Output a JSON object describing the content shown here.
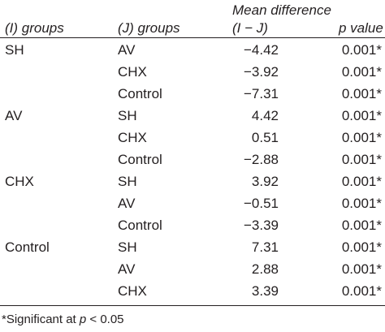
{
  "table": {
    "headers": {
      "i_groups": "(I) groups",
      "j_groups": "(J) groups",
      "mean_diff_line1": "Mean difference",
      "mean_diff_line2": "(I − J)",
      "p_value": "p value"
    },
    "rows": [
      {
        "i": "SH",
        "j": "AV",
        "md": "−4.42",
        "p": "0.001*"
      },
      {
        "i": "",
        "j": "CHX",
        "md": "−3.92",
        "p": "0.001*"
      },
      {
        "i": "",
        "j": "Control",
        "md": "−7.31",
        "p": "0.001*"
      },
      {
        "i": "AV",
        "j": "SH",
        "md": "4.42",
        "p": "0.001*"
      },
      {
        "i": "",
        "j": "CHX",
        "md": "0.51",
        "p": "0.001*"
      },
      {
        "i": "",
        "j": "Control",
        "md": "−2.88",
        "p": "0.001*"
      },
      {
        "i": "CHX",
        "j": "SH",
        "md": "3.92",
        "p": "0.001*"
      },
      {
        "i": "",
        "j": "AV",
        "md": "−0.51",
        "p": "0.001*"
      },
      {
        "i": "",
        "j": "Control",
        "md": "−3.39",
        "p": "0.001*"
      },
      {
        "i": "Control",
        "j": "SH",
        "md": "7.31",
        "p": "0.001*"
      },
      {
        "i": "",
        "j": "AV",
        "md": "2.88",
        "p": "0.001*"
      },
      {
        "i": "",
        "j": "CHX",
        "md": "3.39",
        "p": "0.001*"
      }
    ],
    "footnote": {
      "prefix": "*Significant at ",
      "var": "p",
      "suffix": " < 0.05"
    }
  }
}
